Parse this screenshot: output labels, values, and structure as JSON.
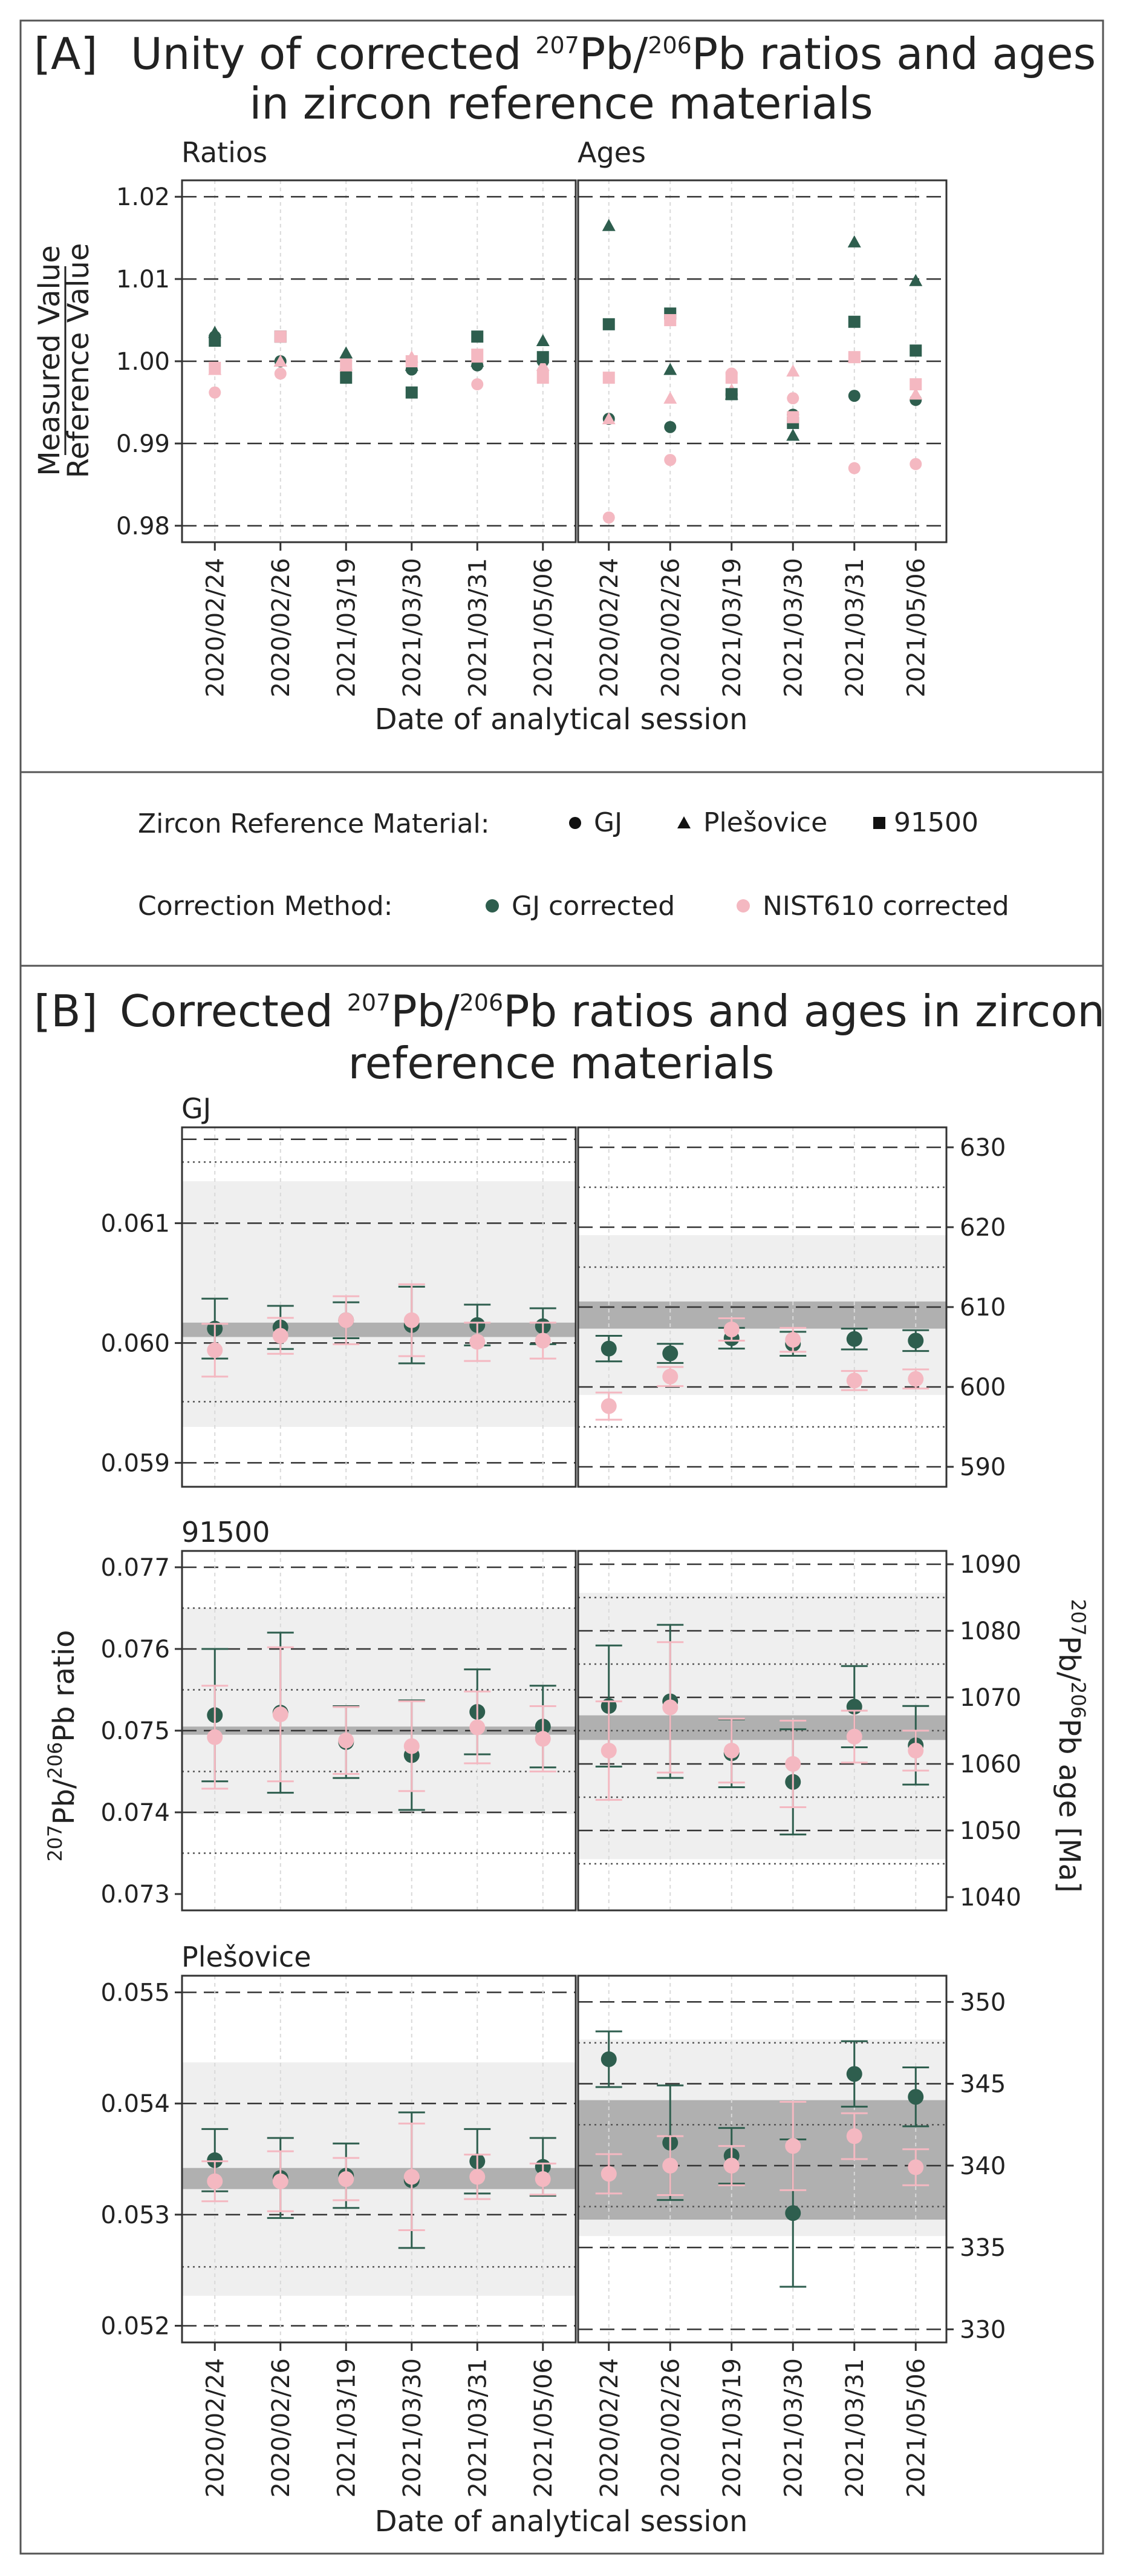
{
  "colors": {
    "gj": "#2e5e4e",
    "nist": "#f4b8c1",
    "frame": "#555555",
    "band_light": "#efefef",
    "band_dark": "#b0b0b0"
  },
  "panelA": {
    "label": "[A]",
    "title_line1_pre": "Unity of corrected ",
    "iso207": "207",
    "pb1": "Pb/",
    "iso206": "206",
    "title_line1_post": "Pb ratios and ages",
    "title_line2": "in zircon reference materials",
    "sub_ratios": "Ratios",
    "sub_ages": "Ages",
    "ylabel_num": "Measured Value",
    "ylabel_den": "Reference Value",
    "xlabel": "Date of analytical session"
  },
  "legend": {
    "material_label": "Zircon Reference Material:",
    "method_label": "Correction Method:",
    "materials": [
      {
        "name": "GJ",
        "marker": "circle"
      },
      {
        "name": "Plešovice",
        "marker": "triangle"
      },
      {
        "name": "91500",
        "marker": "square"
      }
    ],
    "methods": [
      {
        "name": "GJ corrected",
        "color": "#2e5e4e"
      },
      {
        "name": "NIST610 corrected",
        "color": "#f4b8c1"
      }
    ]
  },
  "panelB": {
    "label": "[B]",
    "title_line1_pre": "Corrected ",
    "iso207": "207",
    "pb1": "Pb/",
    "iso206": "206",
    "title_line1_post": "Pb ratios and ages in zircon",
    "title_line2": "reference materials",
    "ylabel_left_pre": "",
    "ylabel_left_sup1": "207",
    "ylabel_left_mid": "Pb/",
    "ylabel_left_sup2": "206",
    "ylabel_left_post": "Pb ratio",
    "ylabel_right_sup1": "207",
    "ylabel_right_mid": "Pb/",
    "ylabel_right_sup2": "206",
    "ylabel_right_post": "Pb age [Ma]",
    "xlabel": "Date of analytical session",
    "subs": [
      "GJ",
      "91500",
      "Plešovice"
    ]
  },
  "chart_data": [
    {
      "type": "scatter",
      "title": "Ratios",
      "categories": [
        "2020/02/24",
        "2020/02/26",
        "2021/03/19",
        "2021/03/30",
        "2021/03/31",
        "2021/05/06"
      ],
      "ylim": [
        0.978,
        1.022
      ],
      "yticks": [
        0.98,
        0.99,
        1.0,
        1.01,
        1.02
      ],
      "ylabel": "Measured Value / Reference Value",
      "series": [
        {
          "name": "GJ",
          "marker": "circle",
          "method": "GJ corrected",
          "values": [
            1.003,
            1.0,
            0.999,
            0.999,
            0.9995,
            1.0
          ]
        },
        {
          "name": "GJ",
          "marker": "circle",
          "method": "NIST610 corrected",
          "values": [
            0.9962,
            0.9985,
            1.0,
            1.0,
            0.9972,
            0.9988
          ]
        },
        {
          "name": "Plešovice",
          "marker": "triangle",
          "method": "GJ corrected",
          "values": [
            1.0035,
            1.0,
            1.001,
            0.9995,
            1.0,
            1.0025
          ]
        },
        {
          "name": "Plešovice",
          "marker": "triangle",
          "method": "NIST610 corrected",
          "values": [
            0.999,
            1.0,
            0.9995,
            1.0005,
            1.0005,
            0.9995
          ]
        },
        {
          "name": "91500",
          "marker": "square",
          "method": "GJ corrected",
          "values": [
            1.0025,
            1.003,
            0.998,
            0.9962,
            1.003,
            1.0005
          ]
        },
        {
          "name": "91500",
          "marker": "square",
          "method": "NIST610 corrected",
          "values": [
            0.9992,
            1.003,
            0.9995,
            1.0,
            1.0008,
            0.998
          ]
        }
      ]
    },
    {
      "type": "scatter",
      "title": "Ages",
      "categories": [
        "2020/02/24",
        "2020/02/26",
        "2021/03/19",
        "2021/03/30",
        "2021/03/31",
        "2021/05/06"
      ],
      "ylim": [
        0.978,
        1.022
      ],
      "yticks": [
        0.98,
        0.99,
        1.0,
        1.01,
        1.02
      ],
      "series": [
        {
          "name": "GJ",
          "marker": "circle",
          "method": "GJ corrected",
          "values": [
            0.993,
            0.992,
            0.996,
            0.9935,
            0.9958,
            0.9953
          ]
        },
        {
          "name": "GJ",
          "marker": "circle",
          "method": "NIST610 corrected",
          "values": [
            0.981,
            0.988,
            0.9985,
            0.9955,
            0.987,
            0.9875
          ]
        },
        {
          "name": "Plešovice",
          "marker": "triangle",
          "method": "GJ corrected",
          "values": [
            1.0165,
            0.999,
            0.996,
            0.991,
            1.0145,
            1.0098
          ]
        },
        {
          "name": "Plešovice",
          "marker": "triangle",
          "method": "NIST610 corrected",
          "values": [
            0.993,
            0.9955,
            0.9965,
            0.9988,
            1.0005,
            0.996
          ]
        },
        {
          "name": "91500",
          "marker": "square",
          "method": "GJ corrected",
          "values": [
            1.0045,
            1.0058,
            0.996,
            0.9925,
            1.0048,
            1.0013
          ]
        },
        {
          "name": "91500",
          "marker": "square",
          "method": "NIST610 corrected",
          "values": [
            0.998,
            1.005,
            0.998,
            0.9932,
            1.0005,
            0.9972
          ]
        }
      ]
    },
    {
      "type": "scatter",
      "title": "GJ",
      "panel": "ratio",
      "categories": [
        "2020/02/24",
        "2020/02/26",
        "2021/03/19",
        "2021/03/30",
        "2021/03/31",
        "2021/05/06"
      ],
      "ylim": [
        0.0588,
        0.0618
      ],
      "yticks": [
        0.059,
        0.06,
        0.061
      ],
      "reference": {
        "value": 0.0601,
        "band_inner": [
          0.06005,
          0.06017
        ],
        "band_outer": [
          0.0593,
          0.06135
        ],
        "dashed": [
          0.059,
          0.06,
          0.061,
          0.0617
        ],
        "dotted": [
          0.05951,
          0.06151
        ]
      },
      "series": [
        {
          "name": "GJ corrected",
          "values": [
            0.06012,
            0.06013,
            0.06019,
            0.06015,
            0.06015,
            0.06014
          ],
          "err": [
            0.00025,
            0.00018,
            0.00015,
            0.00032,
            0.00017,
            0.00015
          ]
        },
        {
          "name": "NIST610 corrected",
          "values": [
            0.05994,
            0.06006,
            0.06019,
            0.06019,
            0.06001,
            0.06002
          ],
          "err": [
            0.00022,
            0.00015,
            0.0002,
            0.0003,
            0.00016,
            0.00015
          ]
        }
      ]
    },
    {
      "type": "scatter",
      "title": "GJ",
      "panel": "age",
      "categories": [
        "2020/02/24",
        "2020/02/26",
        "2021/03/19",
        "2021/03/30",
        "2021/03/31",
        "2021/05/06"
      ],
      "ylim": [
        587.5,
        632.5
      ],
      "yticks": [
        590,
        600,
        610,
        620,
        630
      ],
      "reference": {
        "value": 609,
        "band_inner": [
          607.3,
          610.7
        ],
        "band_outer": [
          599,
          619
        ],
        "dashed": [
          590,
          600,
          610,
          620,
          630
        ],
        "dotted": [
          595,
          615,
          625
        ]
      },
      "series": [
        {
          "name": "GJ corrected",
          "values": [
            604.8,
            604.2,
            606.1,
            605.4,
            606.0,
            605.8
          ],
          "err": [
            1.6,
            1.2,
            1.3,
            1.5,
            1.3,
            1.3
          ]
        },
        {
          "name": "NIST610 corrected",
          "values": [
            597.6,
            601.3,
            607.2,
            605.9,
            600.8,
            601.0
          ],
          "err": [
            1.7,
            1.2,
            1.4,
            1.5,
            1.2,
            1.2
          ]
        }
      ]
    },
    {
      "type": "scatter",
      "title": "91500",
      "panel": "ratio",
      "categories": [
        "2020/02/24",
        "2020/02/26",
        "2021/03/19",
        "2021/03/30",
        "2021/03/31",
        "2021/05/06"
      ],
      "ylim": [
        0.0728,
        0.0772
      ],
      "yticks": [
        0.073,
        0.074,
        0.075,
        0.076,
        0.077
      ],
      "reference": {
        "value": 0.07499,
        "band_inner": [
          0.07495,
          0.07505
        ],
        "band_outer": [
          0.07398,
          0.0765
        ],
        "dashed": [
          0.074,
          0.075,
          0.076,
          0.077
        ],
        "dotted": [
          0.0735,
          0.0745,
          0.0755,
          0.0765
        ]
      },
      "series": [
        {
          "name": "GJ corrected",
          "values": [
            0.07519,
            0.07522,
            0.07486,
            0.0747,
            0.07523,
            0.07505
          ],
          "err": [
            0.00081,
            0.00098,
            0.00044,
            0.00067,
            0.00052,
            0.0005
          ]
        },
        {
          "name": "NIST610 corrected",
          "values": [
            0.07492,
            0.0752,
            0.07488,
            0.07481,
            0.07504,
            0.0749
          ],
          "err": [
            0.00063,
            0.00082,
            0.00041,
            0.00055,
            0.00044,
            0.0004
          ]
        }
      ]
    },
    {
      "type": "scatter",
      "title": "91500",
      "panel": "age",
      "categories": [
        "2020/02/24",
        "2020/02/26",
        "2021/03/19",
        "2021/03/30",
        "2021/03/31",
        "2021/05/06"
      ],
      "ylim": [
        1038,
        1092
      ],
      "yticks": [
        1040,
        1050,
        1060,
        1070,
        1080,
        1090
      ],
      "reference": {
        "value": 1065.4,
        "band_inner": [
          1063.6,
          1067.3
        ],
        "band_outer": [
          1045.7,
          1085.7
        ],
        "dashed": [
          1050,
          1060,
          1070,
          1080,
          1090
        ],
        "dotted": [
          1045,
          1055,
          1065,
          1075,
          1085
        ]
      },
      "series": [
        {
          "name": "GJ corrected",
          "values": [
            1068.7,
            1069.4,
            1061.6,
            1057.3,
            1068.6,
            1062.8
          ],
          "err": [
            9.1,
            11.5,
            5.1,
            7.9,
            6.1,
            5.9
          ]
        },
        {
          "name": "NIST610 corrected",
          "values": [
            1062.0,
            1068.5,
            1062.0,
            1060.0,
            1064.1,
            1062.0
          ],
          "err": [
            7.4,
            9.8,
            4.8,
            6.5,
            3.9,
            3.0
          ]
        }
      ]
    },
    {
      "type": "scatter",
      "title": "Plešovice",
      "panel": "ratio",
      "categories": [
        "2020/02/24",
        "2020/02/26",
        "2021/03/19",
        "2021/03/30",
        "2021/03/31",
        "2021/05/06"
      ],
      "ylim": [
        0.05185,
        0.05515
      ],
      "yticks": [
        0.052,
        0.053,
        0.054,
        0.055
      ],
      "reference": {
        "value": 0.05331,
        "band_inner": [
          0.05323,
          0.05342
        ],
        "band_outer": [
          0.05227,
          0.05437
        ],
        "dashed": [
          0.052,
          0.053,
          0.054,
          0.055
        ],
        "dotted": [
          0.05253
        ]
      },
      "series": [
        {
          "name": "GJ corrected",
          "values": [
            0.05349,
            0.05333,
            0.05335,
            0.05331,
            0.05348,
            0.05343
          ],
          "err": [
            0.00028,
            0.00036,
            0.00029,
            0.00061,
            0.00029,
            0.00026
          ]
        },
        {
          "name": "NIST610 corrected",
          "values": [
            0.0533,
            0.0533,
            0.05332,
            0.05334,
            0.05334,
            0.05332
          ],
          "err": [
            0.00018,
            0.00027,
            0.00019,
            0.00048,
            0.0002,
            0.00014
          ]
        }
      ]
    },
    {
      "type": "scatter",
      "title": "Plešovice",
      "panel": "age",
      "categories": [
        "2020/02/24",
        "2020/02/26",
        "2021/03/19",
        "2021/03/30",
        "2021/03/31",
        "2021/05/06"
      ],
      "ylim": [
        329.2,
        351.6
      ],
      "yticks": [
        330,
        335,
        340,
        345,
        350
      ],
      "reference": {
        "value": 337.1,
        "band_inner": [
          336.7,
          344.0
        ],
        "band_outer": [
          335.7,
          347.7
        ],
        "dashed": [
          330,
          335,
          340,
          345,
          350
        ],
        "dotted": [
          337.5,
          342.5,
          347.5
        ]
      },
      "series": [
        {
          "name": "GJ corrected",
          "values": [
            346.5,
            341.4,
            340.6,
            337.1,
            345.6,
            344.2
          ],
          "err": [
            1.7,
            3.5,
            1.7,
            4.5,
            2.0,
            1.8
          ]
        },
        {
          "name": "NIST610 corrected",
          "values": [
            339.5,
            340.0,
            340.0,
            341.2,
            341.8,
            339.9
          ],
          "err": [
            1.2,
            1.8,
            1.2,
            2.7,
            1.4,
            1.1
          ]
        }
      ]
    }
  ]
}
